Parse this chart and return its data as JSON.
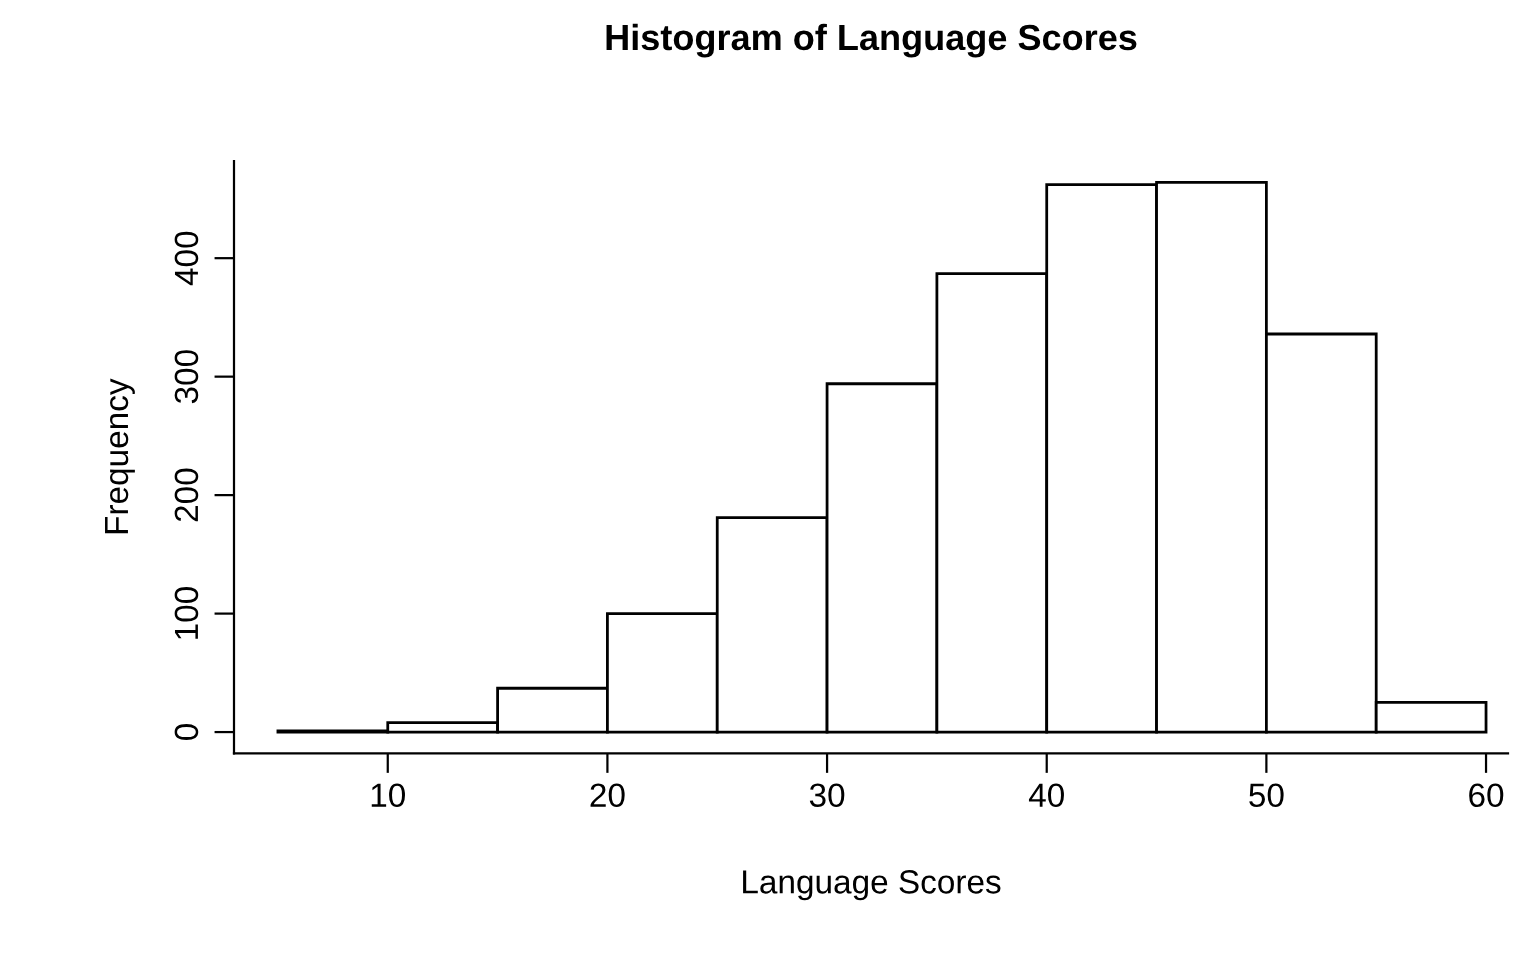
{
  "chart_data": {
    "type": "histogram",
    "title": "Histogram of Language Scores",
    "xlabel": "Language Scores",
    "ylabel": "Frequency",
    "bins": [
      5,
      10,
      15,
      20,
      25,
      30,
      35,
      40,
      45,
      50,
      55,
      60
    ],
    "values": [
      1,
      8,
      37,
      100,
      181,
      294,
      387,
      462,
      464,
      336,
      25
    ],
    "color": "#ffffff",
    "xlim": [
      3,
      61
    ],
    "xticks": [
      10,
      20,
      30,
      40,
      50,
      60
    ],
    "ylim": [
      -18,
      482
    ],
    "yticks": [
      0,
      100,
      200,
      300,
      400
    ],
    "grid": false
  }
}
